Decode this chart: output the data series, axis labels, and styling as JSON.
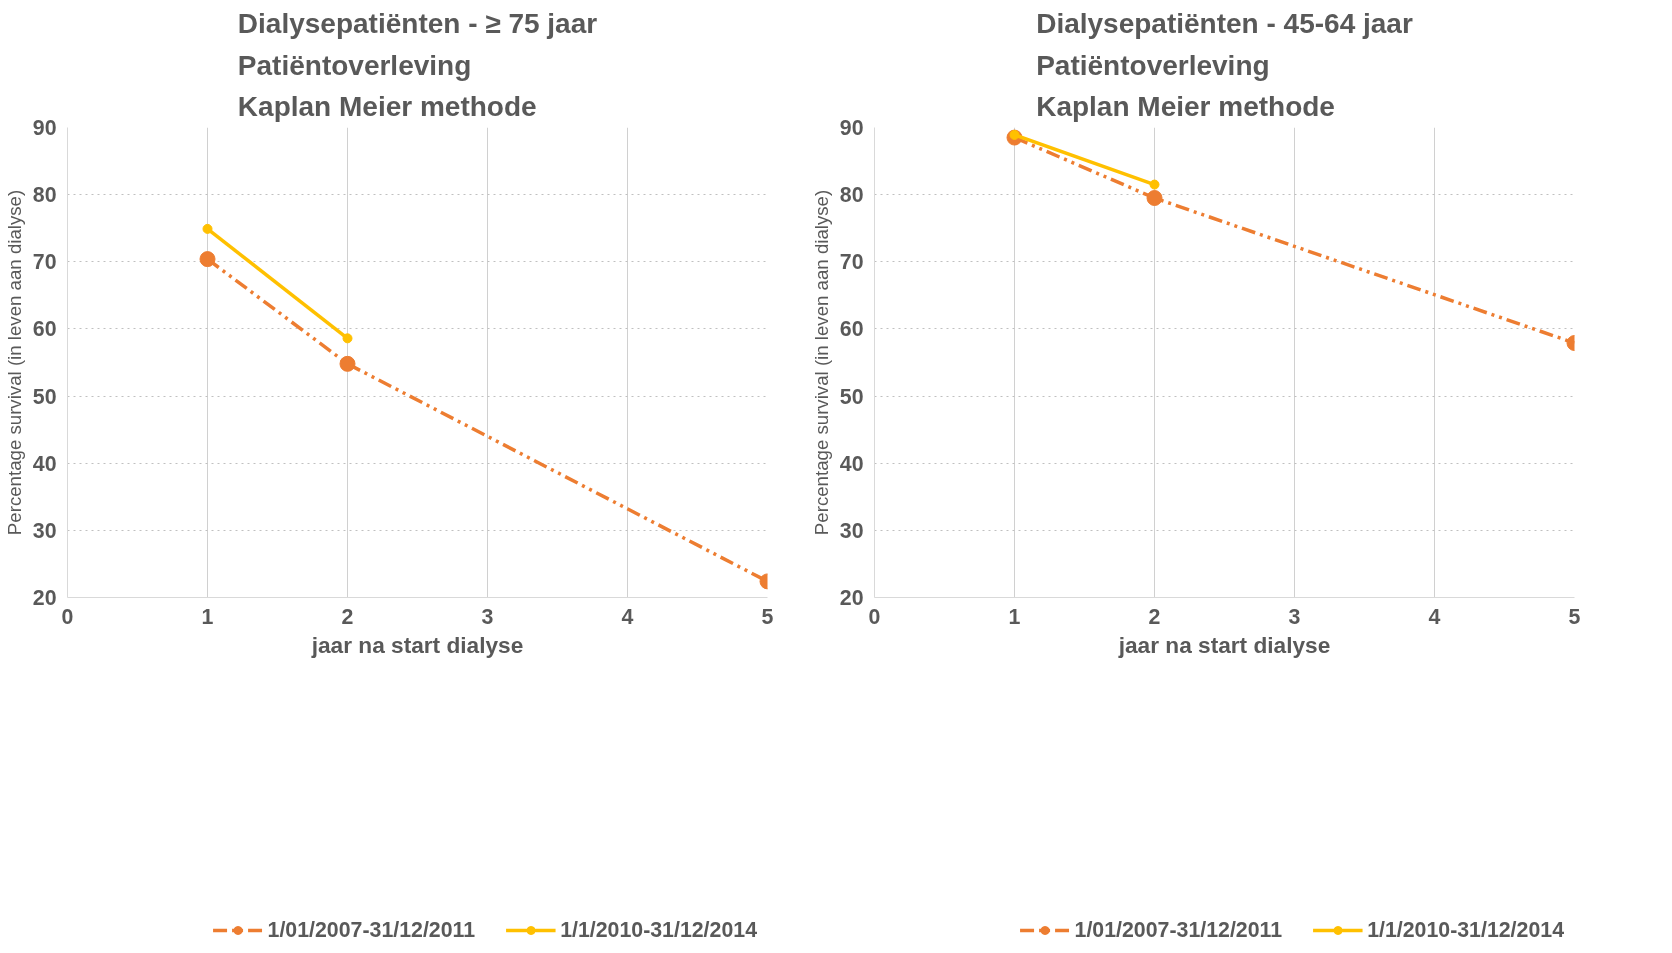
{
  "chart_data": [
    {
      "type": "line",
      "title": "Dialysepatiënten - ≥ 75 jaar\nPatiëntoverleving\nKaplan Meier methode",
      "xlabel": "jaar na start dialyse",
      "ylabel": "Percentage survival (in leven aan dialyse)",
      "xlim": [
        0,
        5
      ],
      "xticks": [
        0,
        1,
        2,
        3,
        4,
        5
      ],
      "ylim": [
        20,
        90
      ],
      "yticks": [
        20,
        30,
        40,
        50,
        60,
        70,
        80,
        90
      ],
      "grid": true,
      "legend": "bottom",
      "marker": "circle",
      "series": [
        {
          "name": "1/01/2007-31/12/2011",
          "color": "#ed7d31",
          "line_style": "dashed",
          "x": [
            1,
            2,
            5
          ],
          "values": [
            70.4,
            54.8,
            22.4
          ]
        },
        {
          "name": "1/1/2010-31/12/2014",
          "color": "#ffc000",
          "line_style": "solid",
          "x": [
            1,
            2
          ],
          "values": [
            74.9,
            58.6
          ]
        }
      ]
    },
    {
      "type": "line",
      "title": "Dialysepatiënten - 45-64 jaar\nPatiëntoverleving\nKaplan Meier methode",
      "xlabel": "jaar na start dialyse",
      "ylabel": "Percentage survival (in leven aan dialyse)",
      "xlim": [
        0,
        5
      ],
      "xticks": [
        0,
        1,
        2,
        3,
        4,
        5
      ],
      "ylim": [
        20,
        90
      ],
      "yticks": [
        20,
        30,
        40,
        50,
        60,
        70,
        80,
        90
      ],
      "grid": true,
      "legend": "bottom",
      "marker": "circle",
      "series": [
        {
          "name": "1/01/2007-31/12/2011",
          "color": "#ed7d31",
          "line_style": "dashed",
          "x": [
            1,
            2,
            5
          ],
          "values": [
            88.5,
            79.5,
            57.9
          ]
        },
        {
          "name": "1/1/2010-31/12/2014",
          "color": "#ffc000",
          "line_style": "solid",
          "x": [
            1,
            2
          ],
          "values": [
            88.9,
            81.5
          ]
        }
      ]
    }
  ]
}
